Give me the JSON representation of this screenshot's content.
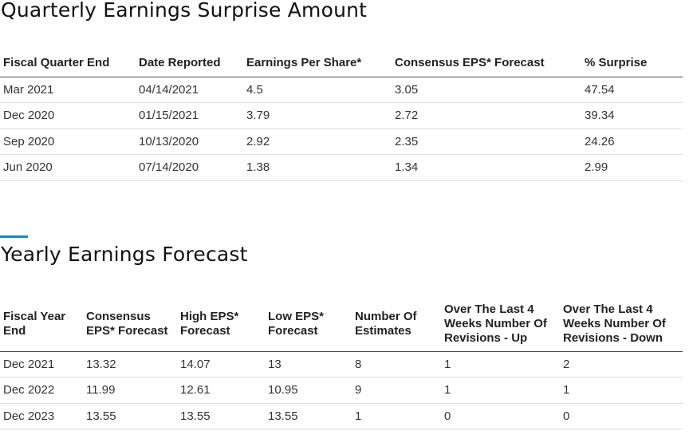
{
  "quarterly": {
    "title": "Quarterly Earnings Surprise Amount",
    "columns": [
      "Fiscal Quarter End",
      "Date Reported",
      "Earnings Per Share*",
      "Consensus EPS* Forecast",
      "% Surprise"
    ],
    "rows": [
      [
        "Mar 2021",
        "04/14/2021",
        "4.5",
        "3.05",
        "47.54"
      ],
      [
        "Dec 2020",
        "01/15/2021",
        "3.79",
        "2.72",
        "39.34"
      ],
      [
        "Sep 2020",
        "10/13/2020",
        "2.92",
        "2.35",
        "24.26"
      ],
      [
        "Jun 2020",
        "07/14/2020",
        "1.38",
        "1.34",
        "2.99"
      ]
    ]
  },
  "yearly": {
    "title": "Yearly Earnings Forecast",
    "accent_color": "#1589c3",
    "columns": [
      "Fiscal Year End",
      "Consensus EPS* Forecast",
      "High EPS* Forecast",
      "Low EPS* Forecast",
      "Number Of Estimates",
      "Over The Last 4 Weeks Number Of Revisions - Up",
      "Over The Last 4 Weeks Number Of Revisions - Down"
    ],
    "rows": [
      [
        "Dec 2021",
        "13.32",
        "14.07",
        "13",
        "8",
        "1",
        "2"
      ],
      [
        "Dec 2022",
        "11.99",
        "12.61",
        "10.95",
        "9",
        "1",
        "1"
      ],
      [
        "Dec 2023",
        "13.55",
        "13.55",
        "13.55",
        "1",
        "0",
        "0"
      ]
    ]
  }
}
